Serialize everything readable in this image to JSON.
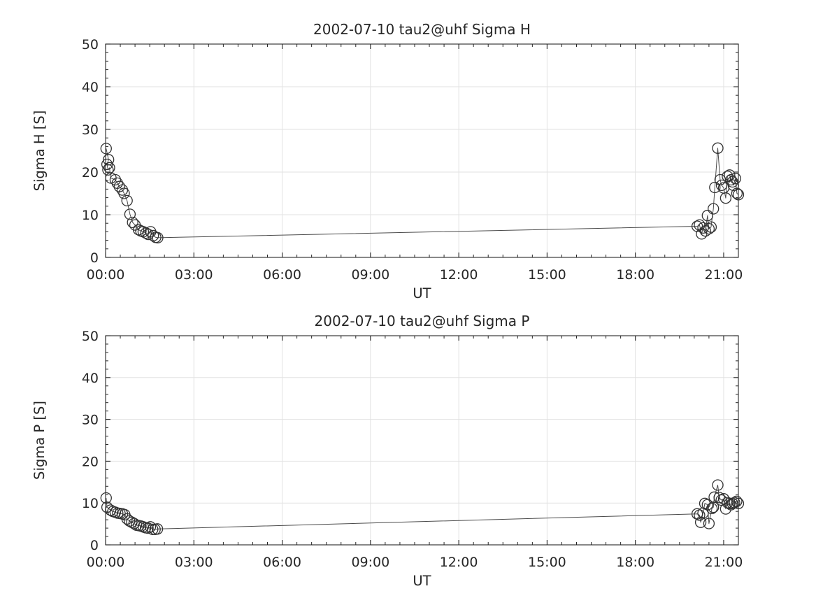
{
  "figure": {
    "background": "#ffffff"
  },
  "colors": {
    "axis": "#262626",
    "tick_label": "#262626",
    "grid": "#e2e2e2",
    "line": "#4a4a4a",
    "marker": "#333333",
    "background": "#ffffff"
  },
  "chart_data": [
    {
      "type": "line",
      "title": "2002-07-10  tau2@uhf Sigma H",
      "xlabel": "UT",
      "ylabel": "Sigma H [S]",
      "xlim": [
        0,
        21.5
      ],
      "ylim": [
        0,
        50
      ],
      "xtick_values": [
        0,
        3,
        6,
        9,
        12,
        15,
        18,
        21
      ],
      "xtick_labels": [
        "00:00",
        "03:00",
        "06:00",
        "09:00",
        "12:00",
        "15:00",
        "18:00",
        "21:00"
      ],
      "ytick_values": [
        0,
        10,
        20,
        30,
        40,
        50
      ],
      "ytick_labels": [
        "0",
        "10",
        "20",
        "30",
        "40",
        "50"
      ],
      "x_minor_step": 0.5,
      "y_minor_step": 2,
      "grid": true,
      "legend": "none",
      "marker": "circle",
      "series": [
        {
          "name": "sigma_h",
          "points": [
            [
              0.02,
              25.5
            ],
            [
              0.1,
              22.9
            ],
            [
              0.05,
              21.8
            ],
            [
              0.08,
              20.5
            ],
            [
              0.13,
              21.0
            ],
            [
              0.18,
              18.6
            ],
            [
              0.33,
              18.2
            ],
            [
              0.4,
              17.4
            ],
            [
              0.47,
              16.6
            ],
            [
              0.57,
              15.8
            ],
            [
              0.63,
              15.0
            ],
            [
              0.73,
              13.3
            ],
            [
              0.83,
              10.1
            ],
            [
              0.92,
              8.2
            ],
            [
              1.0,
              7.6
            ],
            [
              1.12,
              6.5
            ],
            [
              1.2,
              6.2
            ],
            [
              1.28,
              6.0
            ],
            [
              1.37,
              5.7
            ],
            [
              1.45,
              5.4
            ],
            [
              1.53,
              6.0
            ],
            [
              1.62,
              5.1
            ],
            [
              1.7,
              4.7
            ],
            [
              1.77,
              4.6
            ],
            [
              20.1,
              7.3
            ],
            [
              20.18,
              7.6
            ],
            [
              20.25,
              5.5
            ],
            [
              20.3,
              6.9
            ],
            [
              20.38,
              6.2
            ],
            [
              20.45,
              9.8
            ],
            [
              20.5,
              6.7
            ],
            [
              20.57,
              7.1
            ],
            [
              20.65,
              11.4
            ],
            [
              20.7,
              16.4
            ],
            [
              20.8,
              25.6
            ],
            [
              20.88,
              18.2
            ],
            [
              20.93,
              16.9
            ],
            [
              21.0,
              16.3
            ],
            [
              21.07,
              13.9
            ],
            [
              21.13,
              19.0
            ],
            [
              21.2,
              19.3
            ],
            [
              21.25,
              18.2
            ],
            [
              21.3,
              17.7
            ],
            [
              21.33,
              16.9
            ],
            [
              21.4,
              18.5
            ],
            [
              21.45,
              15.0
            ],
            [
              21.5,
              14.7
            ]
          ]
        }
      ]
    },
    {
      "type": "line",
      "title": "2002-07-10  tau2@uhf Sigma P",
      "xlabel": "UT",
      "ylabel": "Sigma P [S]",
      "xlim": [
        0,
        21.5
      ],
      "ylim": [
        0,
        50
      ],
      "xtick_values": [
        0,
        3,
        6,
        9,
        12,
        15,
        18,
        21
      ],
      "xtick_labels": [
        "00:00",
        "03:00",
        "06:00",
        "09:00",
        "12:00",
        "15:00",
        "18:00",
        "21:00"
      ],
      "ytick_values": [
        0,
        10,
        20,
        30,
        40,
        50
      ],
      "ytick_labels": [
        "0",
        "10",
        "20",
        "30",
        "40",
        "50"
      ],
      "x_minor_step": 0.5,
      "y_minor_step": 2,
      "grid": true,
      "legend": "none",
      "marker": "circle",
      "series": [
        {
          "name": "sigma_p",
          "points": [
            [
              0.02,
              11.2
            ],
            [
              0.05,
              9.0
            ],
            [
              0.17,
              8.3
            ],
            [
              0.25,
              8.0
            ],
            [
              0.33,
              7.8
            ],
            [
              0.41,
              7.6
            ],
            [
              0.49,
              7.5
            ],
            [
              0.57,
              7.4
            ],
            [
              0.65,
              7.2
            ],
            [
              0.73,
              6.2
            ],
            [
              0.81,
              5.7
            ],
            [
              0.89,
              5.4
            ],
            [
              0.97,
              5.1
            ],
            [
              1.05,
              4.7
            ],
            [
              1.13,
              4.6
            ],
            [
              1.2,
              4.5
            ],
            [
              1.28,
              4.3
            ],
            [
              1.36,
              4.1
            ],
            [
              1.44,
              4.0
            ],
            [
              1.52,
              4.3
            ],
            [
              1.6,
              3.7
            ],
            [
              1.68,
              3.7
            ],
            [
              1.76,
              3.8
            ],
            [
              20.1,
              7.4
            ],
            [
              20.18,
              7.1
            ],
            [
              20.22,
              5.4
            ],
            [
              20.3,
              7.6
            ],
            [
              20.36,
              9.9
            ],
            [
              20.45,
              9.6
            ],
            [
              20.5,
              5.1
            ],
            [
              20.6,
              8.7
            ],
            [
              20.65,
              9.0
            ],
            [
              20.68,
              11.4
            ],
            [
              20.8,
              14.3
            ],
            [
              20.85,
              11.3
            ],
            [
              20.92,
              10.7
            ],
            [
              21.0,
              11.0
            ],
            [
              21.07,
              8.6
            ],
            [
              21.13,
              10.1
            ],
            [
              21.2,
              9.9
            ],
            [
              21.25,
              9.6
            ],
            [
              21.3,
              9.9
            ],
            [
              21.37,
              10.1
            ],
            [
              21.44,
              10.4
            ],
            [
              21.5,
              9.9
            ]
          ]
        }
      ]
    }
  ]
}
